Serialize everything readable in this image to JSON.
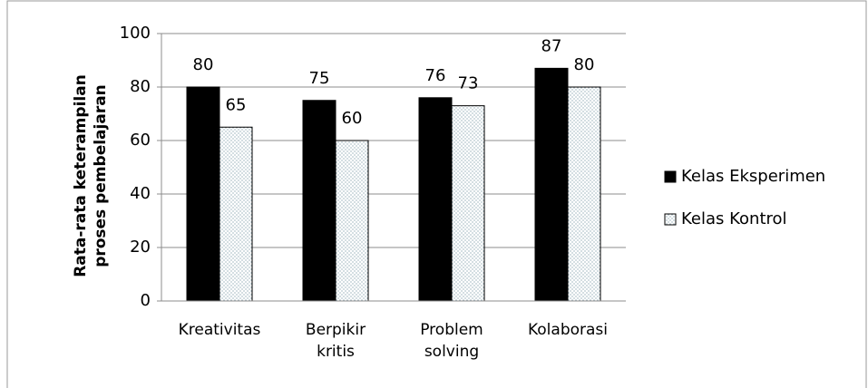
{
  "chart_data": {
    "type": "bar",
    "y_label": "Rata-rata keterampilan proses pembelajaran",
    "categories": [
      "Kreativitas",
      "Berpikir kritis",
      "Problem solving",
      "Kolaborasi"
    ],
    "series": [
      {
        "name": "Kelas Eksperimen",
        "color": "#000000",
        "values": [
          80,
          75,
          76,
          87
        ]
      },
      {
        "name": "Kelas Kontrol",
        "color": "#ffffff",
        "pattern": "dotted",
        "values": [
          65,
          60,
          73,
          80
        ]
      }
    ],
    "ylim": [
      0,
      100
    ],
    "yticks": [
      0,
      20,
      40,
      60,
      80,
      100
    ],
    "grid": true,
    "legend": "right"
  }
}
